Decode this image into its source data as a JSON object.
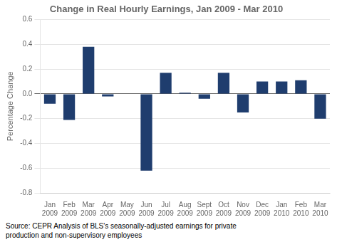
{
  "chart_data": {
    "type": "bar",
    "title": "Change in Real Hourly Earnings, Jan 2009 - Mar 2010",
    "ylabel": "Percentage Change",
    "categories": [
      "Jan\n2009",
      "Feb\n2009",
      "Mar\n2009",
      "Apr\n2009",
      "May\n2009",
      "Jun\n2009",
      "Jul\n2009",
      "Aug\n2009",
      "Sept\n2009",
      "Oct\n2009",
      "Nov\n2009",
      "Dec\n2009",
      "Jan\n2010",
      "Feb\n2010",
      "Mar\n2010"
    ],
    "values": [
      -0.08,
      -0.21,
      0.38,
      -0.02,
      0.0,
      -0.62,
      0.17,
      0.01,
      -0.04,
      0.17,
      -0.15,
      0.1,
      0.1,
      0.11,
      -0.2
    ],
    "color": "#1F3D6E",
    "ylim": [
      -0.8,
      0.6
    ],
    "yticks": [
      -0.8,
      -0.6,
      -0.4,
      -0.2,
      {
        "value": 0,
        "label": "0.0"
      },
      0.2,
      0.4,
      0.6
    ],
    "grid": true,
    "annotations": [
      "Source: CEPR Analysis of BLS's seasonally-adjusted earnings for private\nproduction and non-supervisory employees"
    ]
  }
}
